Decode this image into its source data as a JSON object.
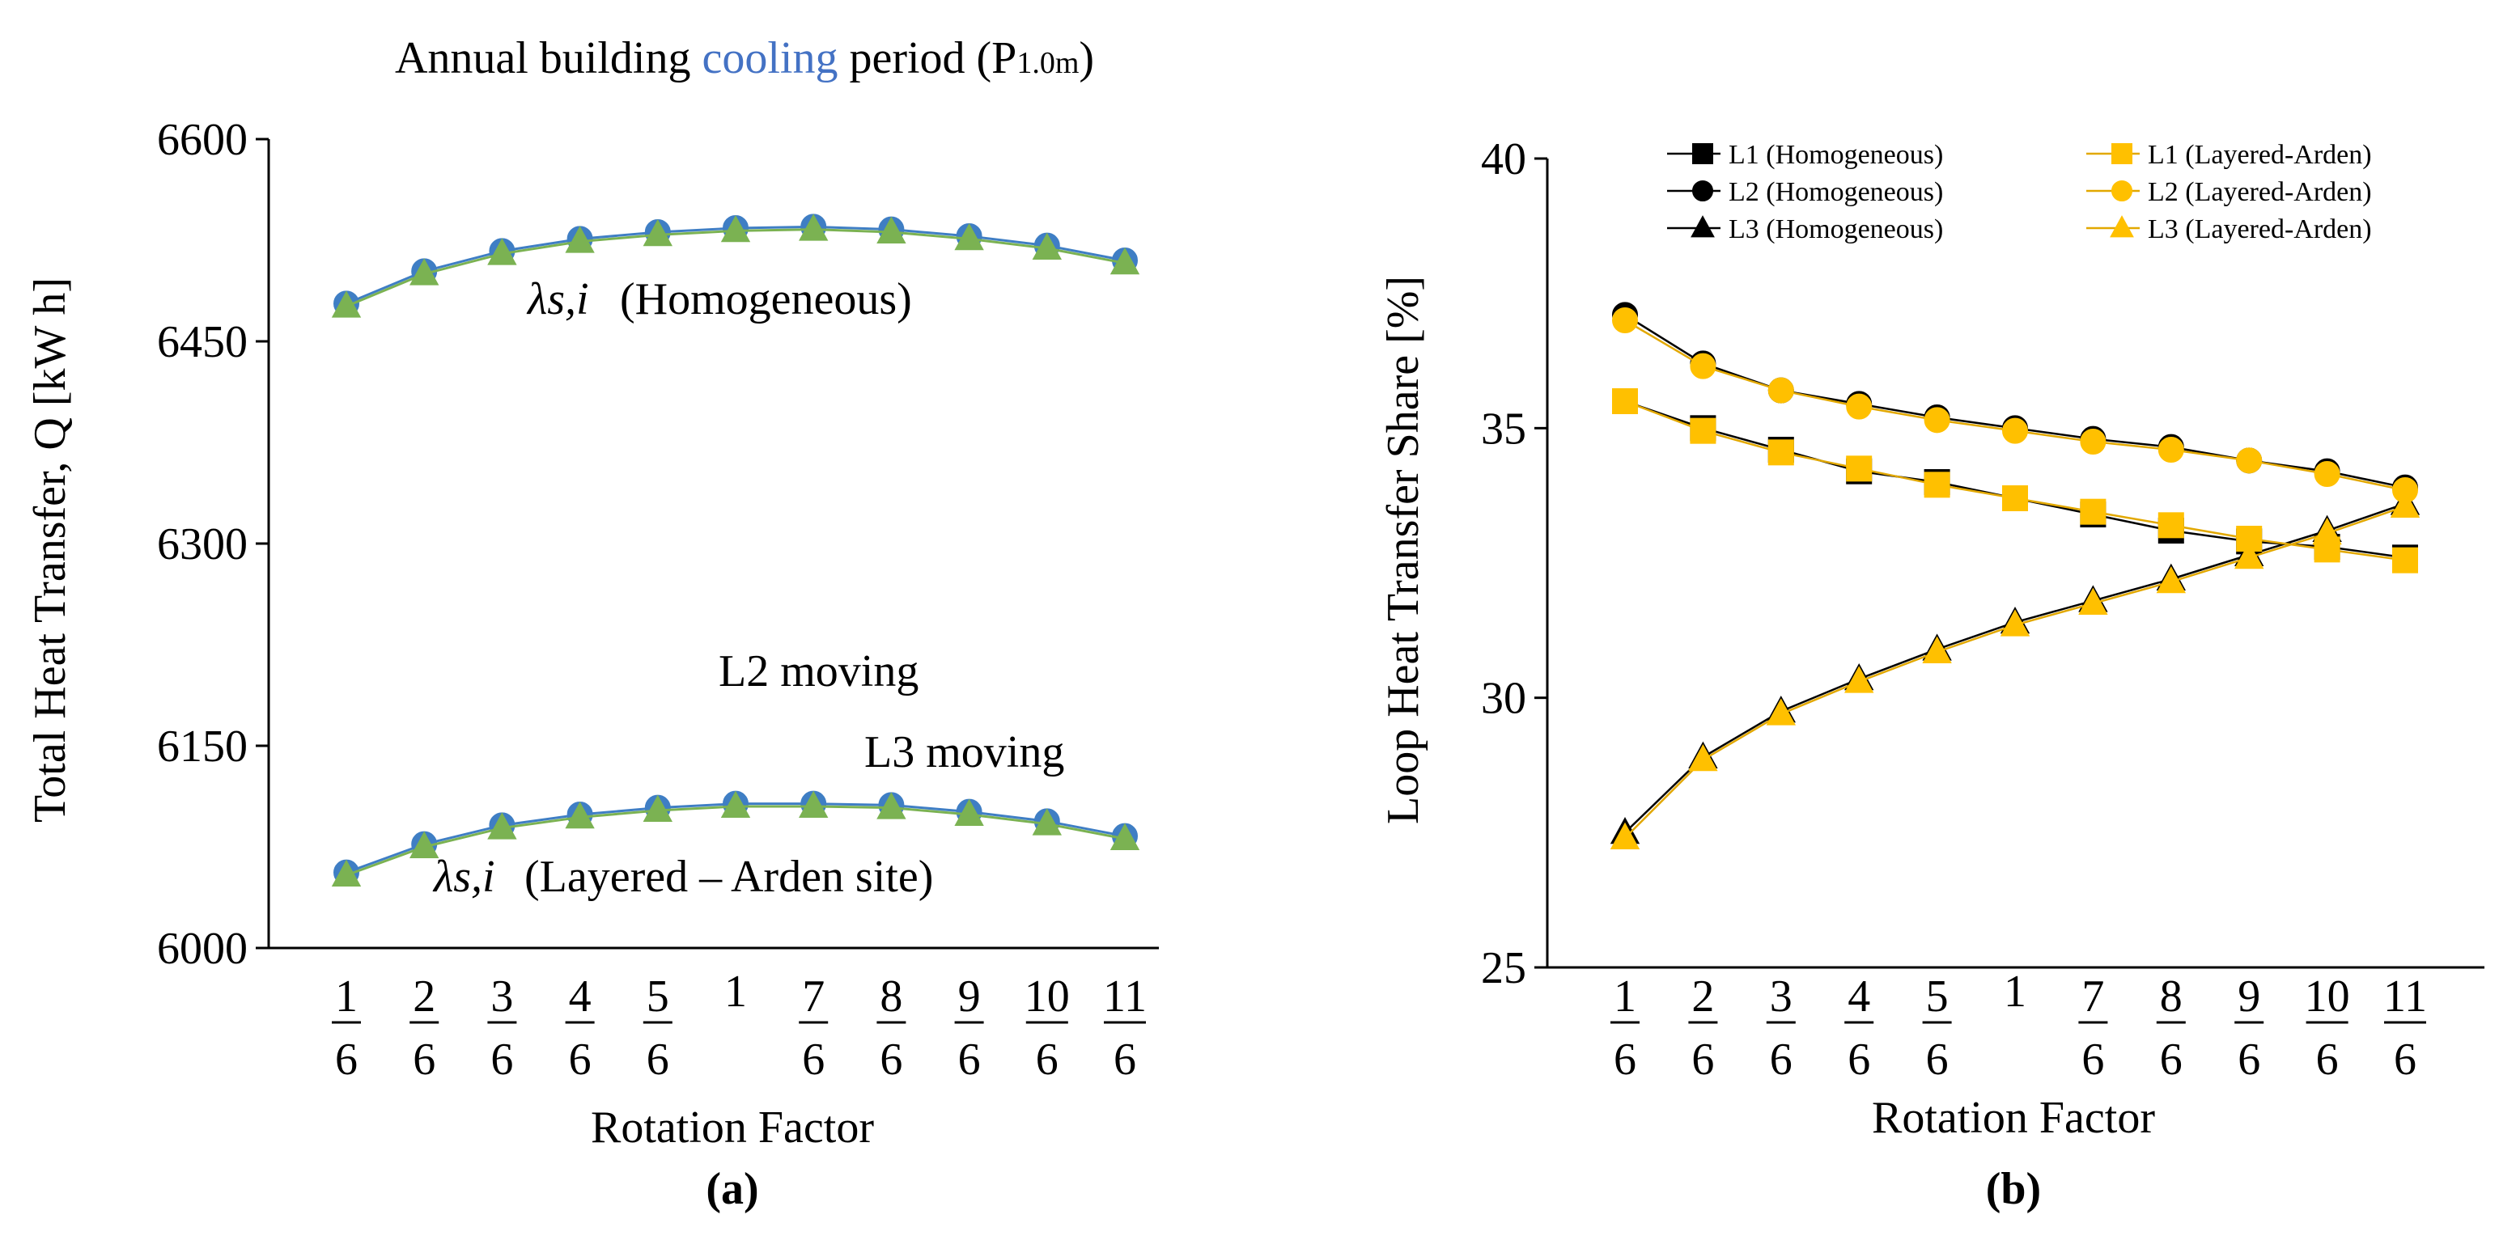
{
  "figure": {
    "title_parts": [
      "Annual building ",
      "cooling",
      " period (P",
      "1.0m",
      ")"
    ],
    "panel_a_label": "(a)",
    "panel_b_label": "(b)"
  },
  "colors": {
    "blue": "#3F7EC4",
    "green": "#7BB252",
    "blue_text": "#4472C4",
    "gold": "#FFC000",
    "gold_line": "#E2A800",
    "black": "#000000"
  },
  "chart_data": [
    {
      "type": "line",
      "panel": "(a)",
      "title": "Annual building cooling period (P1.0m)",
      "xlabel": "Rotation Factor",
      "ylabel": "Total Heat Transfer, Q [kW h]",
      "categories": [
        {
          "num": "1",
          "den": "6"
        },
        {
          "num": "2",
          "den": "6"
        },
        {
          "num": "3",
          "den": "6"
        },
        {
          "num": "4",
          "den": "6"
        },
        {
          "num": "5",
          "den": "6"
        },
        {
          "num": "1",
          "den": ""
        },
        {
          "num": "7",
          "den": "6"
        },
        {
          "num": "8",
          "den": "6"
        },
        {
          "num": "9",
          "den": "6"
        },
        {
          "num": "10",
          "den": "6"
        },
        {
          "num": "11",
          "den": "6"
        }
      ],
      "ylim": [
        6000,
        6600
      ],
      "yticks": [
        "6000",
        "6150",
        "6300",
        "6450",
        "6600"
      ],
      "series": [
        {
          "name": "L2 moving (Homogeneous)",
          "marker": "circle",
          "color": "blue",
          "values": [
            6478,
            6502,
            6517,
            6526,
            6531,
            6534,
            6535,
            6533,
            6528,
            6521,
            6510
          ]
        },
        {
          "name": "L3 moving (Homogeneous)",
          "marker": "triangle",
          "color": "green",
          "values": [
            6476,
            6500,
            6515,
            6524,
            6529,
            6532,
            6533,
            6531,
            6526,
            6519,
            6508
          ]
        },
        {
          "name": "L2 moving (Layered – Arden site)",
          "marker": "circle",
          "color": "blue",
          "values": [
            6056,
            6077,
            6091,
            6099,
            6104,
            6107,
            6107,
            6106,
            6101,
            6094,
            6083
          ]
        },
        {
          "name": "L3 moving (Layered – Arden site)",
          "marker": "triangle",
          "color": "green",
          "values": [
            6054,
            6075,
            6089,
            6097,
            6102,
            6105,
            6105,
            6104,
            6099,
            6092,
            6081
          ]
        }
      ],
      "annotations": {
        "homog_symbol": "λs,i",
        "homog_label": "(Homogeneous)",
        "layered_symbol": "λs,i",
        "layered_label": "(Layered – Arden site)",
        "l2_label": "L2 moving",
        "l3_label": "L3 moving"
      }
    },
    {
      "type": "line",
      "panel": "(b)",
      "xlabel": "Rotation Factor",
      "ylabel": "Loop Heat Transfer Share [%]",
      "categories": [
        {
          "num": "1",
          "den": "6"
        },
        {
          "num": "2",
          "den": "6"
        },
        {
          "num": "3",
          "den": "6"
        },
        {
          "num": "4",
          "den": "6"
        },
        {
          "num": "5",
          "den": "6"
        },
        {
          "num": "1",
          "den": ""
        },
        {
          "num": "7",
          "den": "6"
        },
        {
          "num": "8",
          "den": "6"
        },
        {
          "num": "9",
          "den": "6"
        },
        {
          "num": "10",
          "den": "6"
        },
        {
          "num": "11",
          "den": "6"
        }
      ],
      "ylim": [
        25,
        40
      ],
      "yticks": [
        "25",
        "30",
        "35",
        "40"
      ],
      "series": [
        {
          "name": "L1 (Homogeneous)",
          "marker": "square",
          "color": "black",
          "values": [
            35.5,
            35.0,
            34.6,
            34.2,
            34.0,
            33.7,
            33.4,
            33.1,
            32.9,
            32.8,
            32.6
          ]
        },
        {
          "name": "L2 (Homogeneous)",
          "marker": "circle",
          "color": "black",
          "values": [
            37.1,
            36.2,
            35.7,
            35.45,
            35.2,
            35.0,
            34.8,
            34.65,
            34.4,
            34.2,
            33.9
          ]
        },
        {
          "name": "L3 (Homogeneous)",
          "marker": "triangle",
          "color": "black",
          "values": [
            27.5,
            28.9,
            29.75,
            30.35,
            30.9,
            31.4,
            31.8,
            32.2,
            32.65,
            33.1,
            33.6
          ]
        },
        {
          "name": "L1 (Layered-Arden)",
          "marker": "square",
          "color": "gold",
          "values": [
            35.5,
            34.95,
            34.55,
            34.25,
            33.95,
            33.7,
            33.45,
            33.2,
            32.95,
            32.75,
            32.55
          ]
        },
        {
          "name": "L2 (Layered-Arden)",
          "marker": "circle",
          "color": "gold",
          "values": [
            37.0,
            36.15,
            35.7,
            35.4,
            35.15,
            34.95,
            34.75,
            34.6,
            34.4,
            34.15,
            33.85
          ]
        },
        {
          "name": "L3 (Layered-Arden)",
          "marker": "triangle",
          "color": "gold",
          "values": [
            27.4,
            28.85,
            29.7,
            30.3,
            30.85,
            31.35,
            31.75,
            32.15,
            32.6,
            33.05,
            33.55
          ]
        }
      ],
      "legend": {
        "placement": "top",
        "left": [
          "L1 (Homogeneous)",
          "L2 (Homogeneous)",
          "L3 (Homogeneous)"
        ],
        "right": [
          "L1 (Layered-Arden)",
          "L2 (Layered-Arden)",
          "L3 (Layered-Arden)"
        ]
      }
    }
  ]
}
